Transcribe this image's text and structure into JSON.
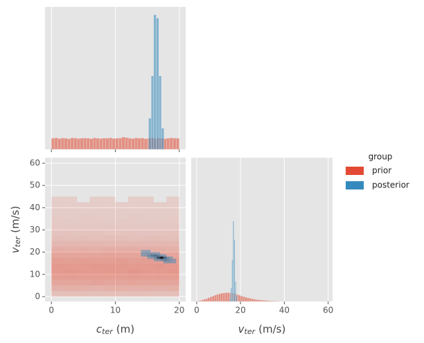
{
  "chart_data": [
    {
      "type": "histogram",
      "xlim": [
        -1,
        21
      ],
      "ylim": [
        0,
        640
      ],
      "xticks": [
        0,
        10,
        20
      ],
      "grid": true,
      "legend": "right",
      "legend_title": "group",
      "series": [
        {
          "name": "prior",
          "color": "#E24A33",
          "bins": [
            0,
            0.5,
            1,
            1.5,
            2,
            2.5,
            3,
            3.5,
            4,
            4.5,
            5,
            5.5,
            6,
            6.5,
            7,
            7.5,
            8,
            8.5,
            9,
            9.5,
            10,
            10.5,
            11,
            11.5,
            12,
            12.5,
            13,
            13.5,
            14,
            14.5,
            15,
            15.5,
            16,
            16.5,
            17,
            17.5,
            18,
            18.5,
            19,
            19.5,
            20
          ],
          "counts": [
            50,
            52,
            49,
            51,
            50,
            48,
            52,
            51,
            49,
            50,
            51,
            50,
            48,
            52,
            50,
            49,
            51,
            50,
            52,
            49,
            50,
            51,
            55,
            53,
            50,
            49,
            52,
            50,
            51,
            48,
            50,
            52,
            49,
            51,
            50,
            48,
            50,
            52,
            51,
            50
          ]
        },
        {
          "name": "posterior",
          "color": "#348ABD",
          "bins": [
            15.2,
            15.6,
            16.0,
            16.4,
            16.8,
            17.2,
            17.6
          ],
          "counts": [
            140,
            330,
            605,
            590,
            330,
            95
          ]
        }
      ]
    },
    {
      "type": "hist2d",
      "xlim": [
        -1,
        21
      ],
      "ylim": [
        -2.2,
        62.5
      ],
      "xticks": [
        0,
        10,
        20
      ],
      "yticks": [
        0,
        10,
        20,
        30,
        40,
        50,
        60
      ],
      "grid": true,
      "xlabel": [
        "c",
        "ter",
        "(m)"
      ],
      "ylabel": [
        "v",
        "ter",
        "(m/s)"
      ],
      "series": [
        {
          "name": "prior",
          "color": "#E24A33",
          "xbins": [
            0,
            2,
            4,
            6,
            8,
            10,
            12,
            14,
            16,
            18,
            20
          ],
          "ybins": [
            0,
            2.5,
            5,
            7.5,
            10,
            12.5,
            15,
            17.5,
            20,
            22.5,
            25,
            27.5,
            30,
            32.5,
            35,
            37.5,
            40,
            42.5,
            45
          ],
          "counts": [
            [
              28,
              31,
              30,
              29,
              33,
              27,
              30,
              32,
              29,
              31
            ],
            [
              58,
              62,
              61,
              57,
              60,
              63,
              59,
              61,
              58,
              62
            ],
            [
              84,
              86,
              83,
              88,
              85,
              82,
              87,
              84,
              86,
              85
            ],
            [
              99,
              102,
              98,
              101,
              100,
              97,
              103,
              99,
              101,
              100
            ],
            [
              108,
              112,
              110,
              109,
              111,
              107,
              113,
              110,
              108,
              112
            ],
            [
              111,
              109,
              108,
              112,
              110,
              111,
              107,
              109,
              112,
              110
            ],
            [
              101,
              98,
              102,
              99,
              100,
              103,
              97,
              101,
              99,
              100
            ],
            [
              86,
              84,
              85,
              83,
              87,
              85,
              84,
              86,
              82,
              85
            ],
            [
              66,
              64,
              65,
              63,
              67,
              65,
              66,
              64,
              65,
              63
            ],
            [
              44,
              46,
              45,
              47,
              43,
              45,
              46,
              44,
              45,
              44
            ],
            [
              31,
              29,
              30,
              28,
              32,
              30,
              29,
              31,
              30,
              29
            ],
            [
              19,
              21,
              20,
              22,
              18,
              20,
              21,
              19,
              20,
              21
            ],
            [
              12,
              14,
              13,
              12,
              14,
              13,
              12,
              14,
              13,
              13
            ],
            [
              8,
              7,
              9,
              8,
              7,
              8,
              9,
              7,
              8,
              8
            ],
            [
              5,
              4,
              6,
              5,
              5,
              4,
              6,
              5,
              4,
              5
            ],
            [
              3,
              2,
              3,
              4,
              3,
              2,
              3,
              3,
              2,
              3
            ],
            [
              2,
              1,
              2,
              2,
              1,
              2,
              1,
              2,
              2,
              1
            ],
            [
              1,
              1,
              0,
              1,
              1,
              0,
              1,
              1,
              0,
              1
            ]
          ]
        },
        {
          "name": "posterior",
          "color": "#348ABD",
          "xbins": [
            14,
            14.5,
            15,
            15.5,
            16,
            16.5,
            17,
            17.5,
            18,
            18.5,
            19,
            19.5
          ],
          "ybins": [
            15,
            16,
            17,
            18,
            19,
            20,
            21
          ],
          "counts": [
            [
              0,
              0,
              0,
              0,
              0,
              0,
              0,
              2,
              4,
              3,
              1
            ],
            [
              0,
              0,
              0,
              0,
              2,
              6,
              10,
              14,
              10,
              4,
              1
            ],
            [
              0,
              0,
              2,
              6,
              12,
              24,
              30,
              20,
              8,
              2,
              0
            ],
            [
              1,
              4,
              10,
              16,
              18,
              14,
              8,
              3,
              0,
              0,
              0
            ],
            [
              2,
              5,
              6,
              5,
              3,
              1,
              0,
              0,
              0,
              0,
              0
            ],
            [
              1,
              1,
              1,
              0,
              0,
              0,
              0,
              0,
              0,
              0,
              0
            ]
          ]
        }
      ]
    },
    {
      "type": "histogram",
      "xlim": [
        -2.5,
        62
      ],
      "ylim": [
        0,
        100
      ],
      "xticks": [
        0,
        20,
        40,
        60
      ],
      "grid": true,
      "xlabel": [
        "v",
        "ter",
        "(m/s)"
      ],
      "series": [
        {
          "name": "prior",
          "color": "#E24A33",
          "bins": [
            0,
            1,
            2,
            3,
            4,
            5,
            6,
            7,
            8,
            9,
            10,
            11,
            12,
            13,
            14,
            15,
            16,
            17,
            18,
            19,
            20,
            21,
            22,
            23,
            24,
            25,
            26,
            27,
            28,
            29,
            30,
            31,
            32,
            33,
            34,
            35,
            36,
            37,
            38,
            39,
            40
          ],
          "counts": [
            0.3,
            0.6,
            1,
            1.5,
            2,
            2.6,
            3.2,
            3.8,
            4.4,
            5,
            5.4,
            5.8,
            6,
            6.2,
            6.2,
            6,
            5.8,
            5.6,
            5,
            4.4,
            3.8,
            3.4,
            3,
            2.6,
            2.2,
            1.9,
            1.6,
            1.4,
            1.2,
            1,
            0.9,
            0.8,
            0.7,
            0.6,
            0.5,
            0.4,
            0.3,
            0.3,
            0.2,
            0.2
          ]
        },
        {
          "name": "posterior",
          "color": "#348ABD",
          "bins": [
            15,
            15.5,
            16,
            16.5,
            17,
            17.5,
            18,
            18.5
          ],
          "counts": [
            2.4,
            9.6,
            29,
            56,
            43,
            14,
            4
          ]
        }
      ]
    }
  ]
}
